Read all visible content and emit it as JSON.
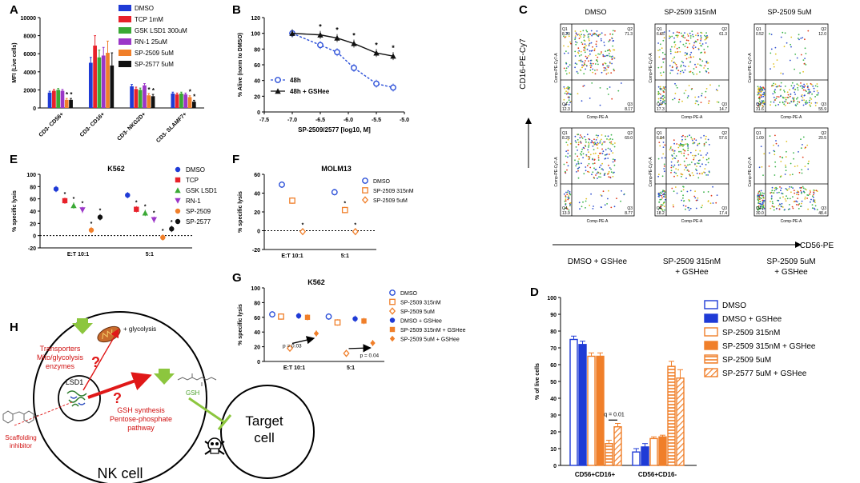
{
  "panel_letters": [
    "A",
    "B",
    "C",
    "D",
    "E",
    "F",
    "G",
    "H"
  ],
  "chart_data": [
    {
      "id": "A",
      "type": "bar",
      "ylabel": "MFI (Live cells)",
      "ylim": [
        0,
        10000
      ],
      "yticks": [
        "0",
        "2000",
        "4000",
        "6000",
        "8000",
        "10000"
      ],
      "categories": [
        "CD3- CD56+",
        "CD3- CD16+",
        "CD3- NKG2D+",
        "CD3- SLAMF7+"
      ],
      "series": [
        {
          "name": "DMSO",
          "color": "#1f3bd6",
          "values": [
            1700,
            5000,
            2400,
            1600
          ],
          "err": [
            150,
            600,
            200,
            150
          ],
          "sig": [
            false,
            false,
            false,
            false
          ]
        },
        {
          "name": "TCP 1mM",
          "color": "#e8212a",
          "values": [
            1900,
            6900,
            2100,
            1500
          ],
          "err": [
            150,
            1100,
            200,
            150
          ],
          "sig": [
            false,
            false,
            false,
            false
          ]
        },
        {
          "name": "GSK LSD1 300uM",
          "color": "#3aa935",
          "values": [
            2000,
            5600,
            2000,
            1600
          ],
          "err": [
            150,
            800,
            200,
            150
          ],
          "sig": [
            false,
            false,
            false,
            false
          ]
        },
        {
          "name": "RN-1 25uM",
          "color": "#9b36c8",
          "values": [
            1900,
            5800,
            2500,
            1500
          ],
          "err": [
            150,
            900,
            200,
            150
          ],
          "sig": [
            false,
            false,
            false,
            false
          ]
        },
        {
          "name": "SP-2509 5uM",
          "color": "#f07f2a",
          "values": [
            900,
            6100,
            1400,
            1200
          ],
          "err": [
            150,
            1300,
            200,
            150
          ],
          "sig": [
            true,
            false,
            true,
            true
          ]
        },
        {
          "name": "SP-2577 5uM",
          "color": "#111111",
          "values": [
            900,
            4700,
            1300,
            700
          ],
          "err": [
            150,
            1400,
            200,
            150
          ],
          "sig": [
            true,
            false,
            true,
            true
          ]
        }
      ]
    },
    {
      "id": "B",
      "type": "line",
      "ylabel": "% Alive (norm to DMSO)",
      "xlabel": "SP-2509/2577 [log10, M]",
      "xlim": [
        -7.5,
        -5.0
      ],
      "ylim": [
        0,
        120
      ],
      "xticks": [
        "-7.5",
        "-7.0",
        "-6.5",
        "-6.0",
        "-5.5",
        "-5.0"
      ],
      "yticks": [
        "0",
        "20",
        "40",
        "60",
        "80",
        "100",
        "120"
      ],
      "series": [
        {
          "name": "48h",
          "color": "#2b4fd8",
          "x": [
            -7.0,
            -6.5,
            -6.2,
            -5.9,
            -5.5,
            -5.2
          ],
          "y": [
            100,
            85,
            76,
            56,
            36,
            31
          ],
          "sig": [
            false,
            false,
            false,
            false,
            false,
            false
          ]
        },
        {
          "name": "48h + GSHee",
          "color": "#111111",
          "x": [
            -7.0,
            -6.5,
            -6.2,
            -5.9,
            -5.5,
            -5.2
          ],
          "y": [
            100,
            98,
            94,
            87,
            75,
            71
          ],
          "sig": [
            false,
            true,
            true,
            true,
            true,
            true
          ]
        }
      ]
    },
    {
      "id": "C",
      "type": "scatter",
      "xlabel": "CD56-PE",
      "ylabel": "CD16-PE-Cy7",
      "plot_xlabel": "Comp-PE-A",
      "plot_ylabel": "Comp-PE-Cy7-A",
      "col_titles": [
        "DMSO",
        "SP-2509 315nM",
        "SP-2509 5uM"
      ],
      "row2_titles": [
        [
          "DMSO + GSHee"
        ],
        [
          "SP-2509 315nM",
          "+ GSHee"
        ],
        [
          "SP-2509 5uM",
          "+ GSHee"
        ]
      ],
      "quadrants": [
        {
          "q1": "8.20",
          "q2": "71.3",
          "q3": "8.17",
          "q4": "12.3"
        },
        {
          "q1": "6.65",
          "q2": "61.3",
          "q3": "14.7",
          "q4": "17.3"
        },
        {
          "q1": "0.52",
          "q2": "12.0",
          "q3": "55.9",
          "q4": "31.6"
        },
        {
          "q1": "8.26",
          "q2": "69.0",
          "q3": "8.77",
          "q4": "13.9"
        },
        {
          "q1": "6.84",
          "q2": "57.6",
          "q3": "17.4",
          "q4": "18.2"
        },
        {
          "q1": "1.09",
          "q2": "20.5",
          "q3": "48.4",
          "q4": "30.0"
        }
      ]
    },
    {
      "id": "D",
      "type": "bar",
      "ylabel": "% of live cells",
      "ylim": [
        0,
        100
      ],
      "yticks": [
        "0",
        "10",
        "20",
        "30",
        "40",
        "50",
        "60",
        "70",
        "80",
        "90",
        "100"
      ],
      "categories": [
        "CD56+CD16+",
        "CD56+CD16-"
      ],
      "annotation": "q = 0.01",
      "series": [
        {
          "name": "DMSO",
          "color": "#1f3bd6",
          "style": "open",
          "values": [
            75,
            8
          ],
          "err": [
            2,
            2
          ]
        },
        {
          "name": "DMSO + GSHee",
          "color": "#1f3bd6",
          "style": "solid",
          "values": [
            72,
            11
          ],
          "err": [
            2,
            2
          ]
        },
        {
          "name": "SP-2509 315nM",
          "color": "#f07f2a",
          "style": "open",
          "values": [
            65,
            16
          ],
          "err": [
            2,
            1
          ]
        },
        {
          "name": "SP-2509 315nM + GSHee",
          "color": "#f07f2a",
          "style": "solid",
          "values": [
            65,
            17
          ],
          "err": [
            2,
            1
          ]
        },
        {
          "name": "SP-2509 5uM",
          "color": "#f07f2a",
          "style": "hatch-h",
          "values": [
            13,
            59
          ],
          "err": [
            2,
            3
          ]
        },
        {
          "name": "SP-2577 5uM + GSHee",
          "color": "#f07f2a",
          "style": "hatch-d",
          "values": [
            23,
            52
          ],
          "err": [
            2,
            5
          ]
        }
      ]
    },
    {
      "id": "E",
      "type": "scatter",
      "title": "K562",
      "ylabel": "% specific lysis",
      "ylim": [
        -20,
        100
      ],
      "yticks": [
        "-20",
        "0",
        "20",
        "40",
        "60",
        "80",
        "100"
      ],
      "categories": [
        "E:T 10:1",
        "5:1"
      ],
      "series": [
        {
          "name": "DMSO",
          "color": "#1f3bd6",
          "marker": "circle",
          "values": [
            76,
            66
          ],
          "sig": [
            false,
            false
          ]
        },
        {
          "name": "TCP",
          "color": "#e8212a",
          "marker": "square",
          "values": [
            57,
            43
          ],
          "sig": [
            true,
            true
          ]
        },
        {
          "name": "GSK LSD1",
          "color": "#3aa935",
          "marker": "triangle",
          "values": [
            49,
            37
          ],
          "sig": [
            true,
            true
          ]
        },
        {
          "name": "RN-1",
          "color": "#9b36c8",
          "marker": "tri-down",
          "values": [
            42,
            26
          ],
          "sig": [
            true,
            true
          ]
        },
        {
          "name": "SP-2509",
          "color": "#f07f2a",
          "marker": "circle",
          "values": [
            9,
            -3
          ],
          "sig": [
            true,
            true
          ]
        },
        {
          "name": "SP-2577",
          "color": "#111111",
          "marker": "circle",
          "values": [
            30,
            11
          ],
          "sig": [
            true,
            true
          ]
        }
      ]
    },
    {
      "id": "F",
      "type": "scatter",
      "title": "MOLM13",
      "ylabel": "% specific lysis",
      "ylim": [
        -20,
        60
      ],
      "yticks": [
        "-20",
        "0",
        "20",
        "40",
        "60"
      ],
      "categories": [
        "E:T 10:1",
        "5:1"
      ],
      "series": [
        {
          "name": "DMSO",
          "color": "#2b4fd8",
          "marker": "open-circle",
          "values": [
            49,
            41
          ],
          "sig": [
            false,
            false
          ]
        },
        {
          "name": "SP-2509 315nM",
          "color": "#f07f2a",
          "marker": "open-square",
          "values": [
            32,
            22
          ],
          "sig": [
            false,
            true
          ]
        },
        {
          "name": "SP-2509 5uM",
          "color": "#f07f2a",
          "marker": "open-diamond",
          "values": [
            -1,
            -1
          ],
          "sig": [
            true,
            true
          ]
        }
      ]
    },
    {
      "id": "G",
      "type": "scatter",
      "title": "K562",
      "ylabel": "% specific lysis",
      "ylim": [
        0,
        100
      ],
      "yticks": [
        "0",
        "20",
        "40",
        "60",
        "80",
        "100"
      ],
      "categories": [
        "E:T 10:1",
        "5:1"
      ],
      "annotations": [
        "p = 0.03",
        "p = 0.04"
      ],
      "series": [
        {
          "name": "DMSO",
          "color": "#2b4fd8",
          "marker": "open-circle",
          "values": [
            64,
            61
          ]
        },
        {
          "name": "SP-2509 315nM",
          "color": "#f07f2a",
          "marker": "open-square",
          "values": [
            61,
            53
          ]
        },
        {
          "name": "SP-2509 5uM",
          "color": "#f07f2a",
          "marker": "open-diamond",
          "values": [
            18,
            11
          ]
        },
        {
          "name": "DMSO + GSHee",
          "color": "#1f3bd6",
          "marker": "circle",
          "values": [
            62,
            58
          ]
        },
        {
          "name": "SP-2509 315nM + GSHee",
          "color": "#f07f2a",
          "marker": "square",
          "values": [
            60,
            55
          ]
        },
        {
          "name": "SP-2509 5uM + GSHee",
          "color": "#f07f2a",
          "marker": "diamond",
          "values": [
            38,
            25
          ]
        }
      ]
    }
  ],
  "diagram_h": {
    "glycolysis": "+ glycolysis",
    "transporters": [
      "Transporters",
      "Mito/glycolysis",
      "enzymes"
    ],
    "lsd1": "LSD1",
    "gsh": "GSH",
    "gsh_synthesis": [
      "GSH synthesis",
      "Pentose-phosphate",
      "pathway"
    ],
    "scaffolding": [
      "Scaffolding",
      "inhibitor"
    ],
    "nk_cell": "NK cell",
    "target": [
      "Target",
      "cell"
    ],
    "question": "?"
  }
}
